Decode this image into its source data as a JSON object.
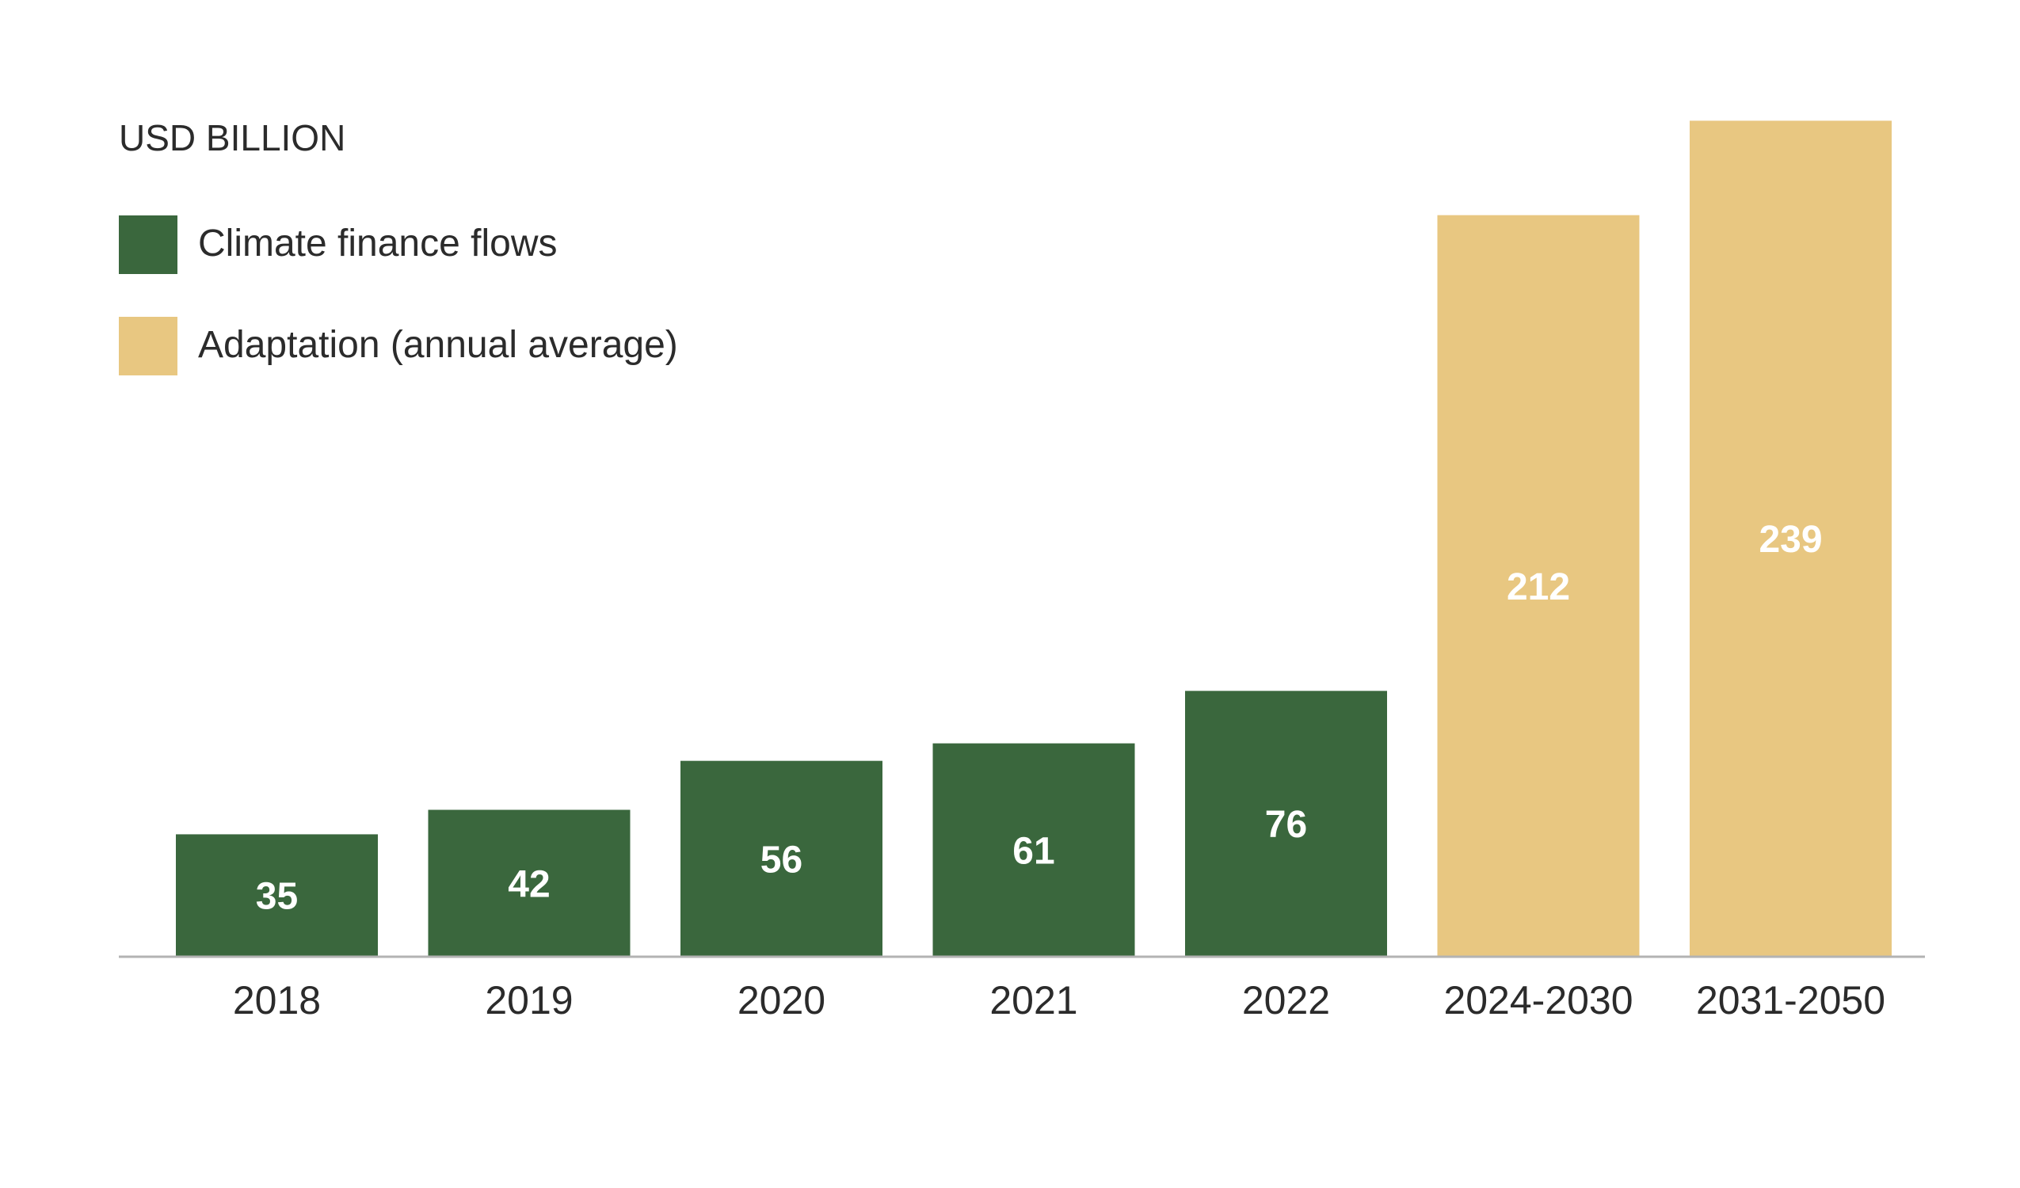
{
  "colors": {
    "climate_finance": "#3a673d",
    "adaptation": "#e8c781",
    "axis": "#b3b3b3",
    "text": "#2b2b2b",
    "value_label": "#ffffff"
  },
  "chart_data": {
    "type": "bar",
    "unit_label": "USD BILLION",
    "categories": [
      "2018",
      "2019",
      "2020",
      "2021",
      "2022",
      "2024-2030",
      "2031-2050"
    ],
    "values": [
      35,
      42,
      56,
      61,
      76,
      212,
      239
    ],
    "bar_series": [
      "Climate finance flows",
      "Climate finance flows",
      "Climate finance flows",
      "Climate finance flows",
      "Climate finance flows",
      "Adaptation (annual average)",
      "Adaptation (annual average)"
    ],
    "series": [
      {
        "name": "Climate finance flows",
        "color": "#3a673d"
      },
      {
        "name": "Adaptation (annual average)",
        "color": "#e8c781"
      }
    ],
    "legend_position": "top-left",
    "ylim": [
      0,
      240
    ],
    "grid": false,
    "xlabel": "",
    "ylabel": ""
  }
}
